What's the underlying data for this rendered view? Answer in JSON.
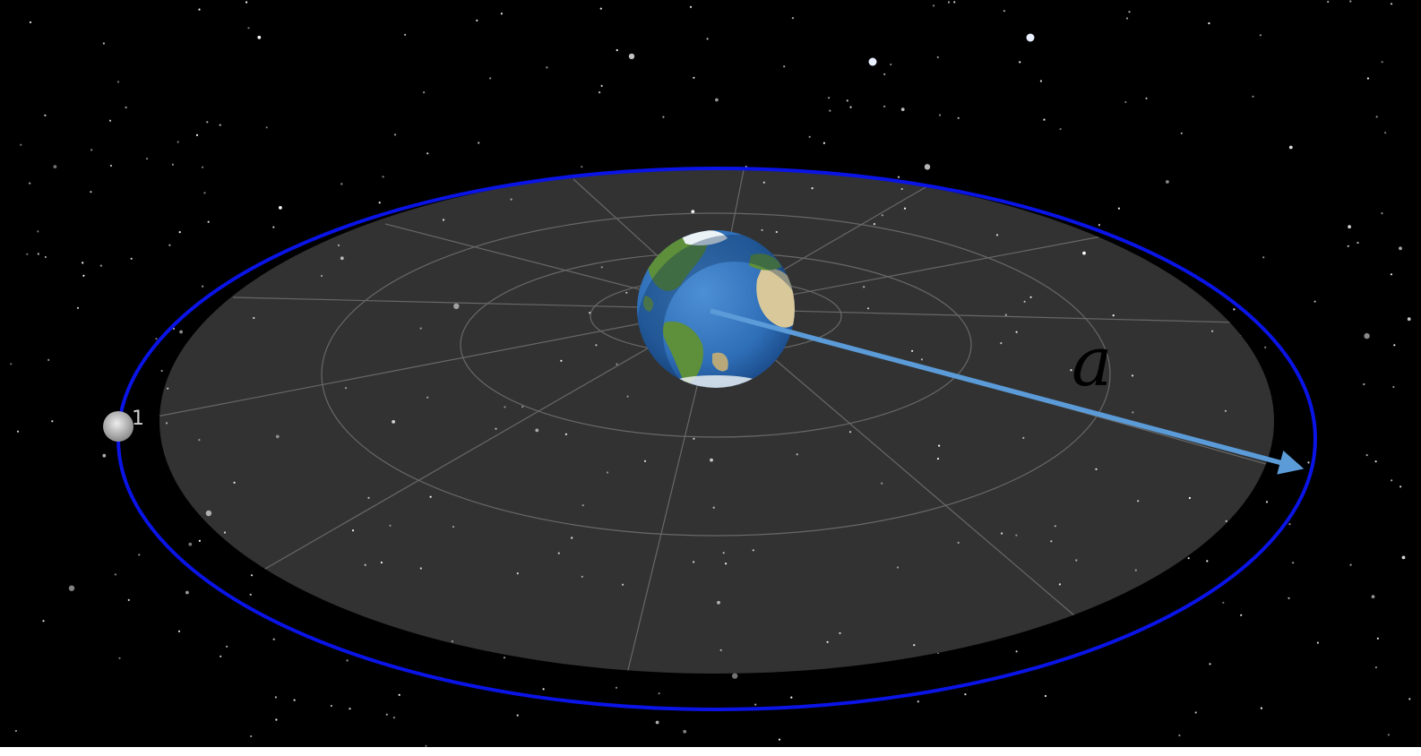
{
  "diagram": {
    "satellite_label": "1",
    "radius_label": "a",
    "colors": {
      "background": "#000000",
      "plane": "#323232",
      "grid": "#7a7a7a",
      "orbit": "#0a14e6",
      "arrow": "#5b9bd8",
      "ocean": "#2f6fb8",
      "land": "#5e8f3a",
      "satellite": "#bcbcbc"
    },
    "icons": [
      "earth-globe-icon",
      "satellite-icon"
    ]
  }
}
